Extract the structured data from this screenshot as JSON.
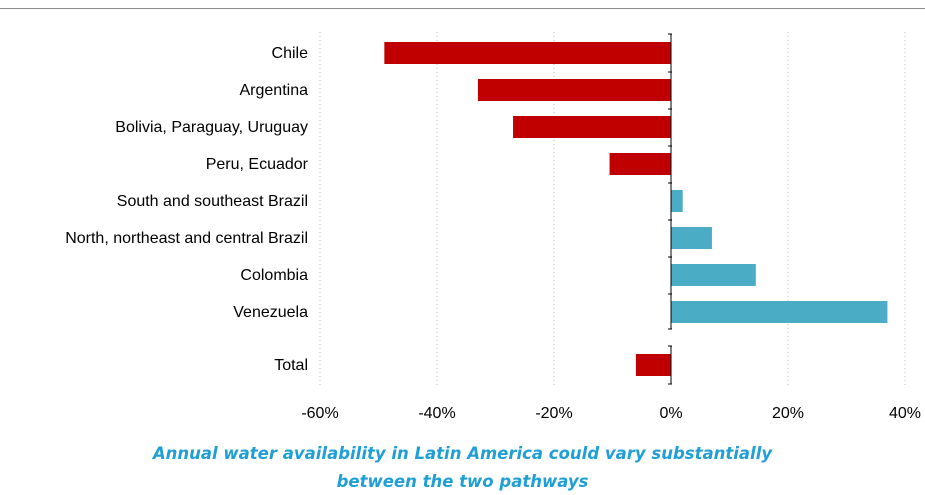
{
  "chart_data": {
    "type": "bar",
    "orientation": "horizontal",
    "categories": [
      "Chile",
      "Argentina",
      "Bolivia, Paraguay, Uruguay",
      "Peru, Ecuador",
      "South and southeast Brazil",
      "North, northeast and central Brazil",
      "Colombia",
      "Venezuela",
      "Total"
    ],
    "values": [
      -49,
      -33,
      -27,
      -10.5,
      2,
      7,
      14.5,
      37,
      -6
    ],
    "value_unit": "%",
    "xlim": [
      -60,
      40
    ],
    "xticks": [
      "-60%",
      "-40%",
      "-20%",
      "0%",
      "20%",
      "40%"
    ],
    "grid": "vertical dotted",
    "colors": {
      "negative": "#c00000",
      "positive": "#4bacc6"
    },
    "title": ""
  },
  "caption": {
    "line1": "Annual water availability in Latin America could vary substantially",
    "line2": "between the two pathways"
  }
}
